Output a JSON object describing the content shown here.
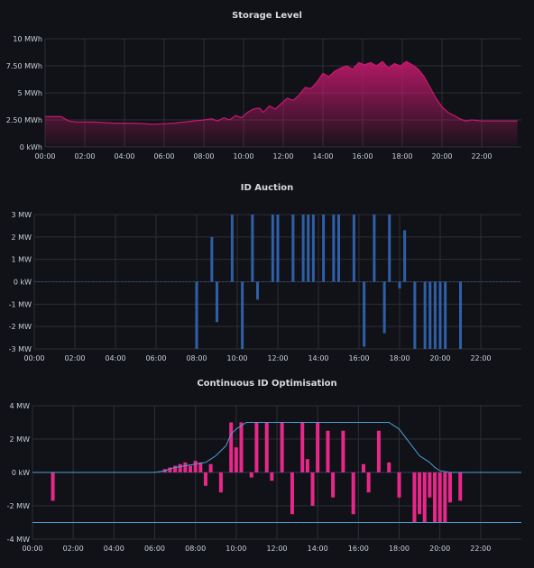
{
  "chart_data": [
    {
      "type": "area",
      "title": "Storage Level",
      "x_tick_labels": [
        "00:00",
        "02:00",
        "04:00",
        "06:00",
        "08:00",
        "10:00",
        "12:00",
        "14:00",
        "16:00",
        "18:00",
        "20:00",
        "22:00"
      ],
      "y_tick_labels": [
        "0 kWh",
        "2.50 MWh",
        "5 MWh",
        "7.50 MWh",
        "10 MWh"
      ],
      "ylim": [
        0,
        10
      ],
      "xlim": [
        0,
        24
      ],
      "grid": true,
      "color": "#c4196e",
      "series": [
        {
          "x": [
            0,
            0.8,
            1.2,
            1.6,
            2.5,
            3.5,
            4.5,
            5.5,
            6.5,
            7.0,
            7.5,
            8.0,
            8.4,
            8.7,
            9.0,
            9.3,
            9.6,
            9.9,
            10.2,
            10.5,
            10.8,
            11.0,
            11.3,
            11.6,
            11.9,
            12.2,
            12.5,
            12.8,
            13.1,
            13.4,
            13.7,
            14.0,
            14.3,
            14.6,
            14.9,
            15.2,
            15.5,
            15.8,
            16.1,
            16.4,
            16.7,
            17.0,
            17.3,
            17.6,
            17.9,
            18.2,
            18.5,
            18.8,
            19.1,
            19.4,
            19.7,
            20.0,
            20.3,
            20.6,
            20.9,
            21.2,
            21.5,
            22.0,
            23.0,
            23.8
          ],
          "y": [
            2.8,
            2.8,
            2.4,
            2.3,
            2.3,
            2.2,
            2.2,
            2.1,
            2.2,
            2.3,
            2.4,
            2.5,
            2.6,
            2.4,
            2.7,
            2.5,
            2.9,
            2.7,
            3.2,
            3.5,
            3.6,
            3.2,
            3.8,
            3.5,
            4.0,
            4.5,
            4.3,
            4.8,
            5.5,
            5.4,
            6.0,
            6.8,
            6.5,
            7.0,
            7.3,
            7.5,
            7.2,
            7.8,
            7.6,
            7.8,
            7.5,
            7.9,
            7.3,
            7.7,
            7.5,
            7.9,
            7.6,
            7.2,
            6.5,
            5.5,
            4.5,
            3.7,
            3.2,
            2.9,
            2.6,
            2.4,
            2.5,
            2.4,
            2.4,
            2.4
          ]
        }
      ]
    },
    {
      "type": "bar",
      "title": "ID Auction",
      "x_tick_labels": [
        "00:00",
        "02:00",
        "04:00",
        "06:00",
        "08:00",
        "10:00",
        "12:00",
        "14:00",
        "16:00",
        "18:00",
        "20:00",
        "22:00"
      ],
      "y_tick_labels": [
        "-3 MW",
        "-2 MW",
        "-1 MW",
        "0 kW",
        "1 MW",
        "2 MW",
        "3 MW"
      ],
      "ylim": [
        -3,
        3
      ],
      "xlim": [
        0,
        24
      ],
      "grid": true,
      "color": "#2f5fa8",
      "series": [
        {
          "x": [
            8.0,
            8.75,
            9.0,
            9.75,
            10.25,
            10.75,
            11.0,
            11.75,
            12.0,
            12.75,
            13.25,
            13.5,
            13.75,
            14.25,
            14.75,
            15.0,
            15.75,
            16.25,
            16.75,
            17.25,
            17.5,
            18.0,
            18.25,
            18.75,
            19.25,
            19.5,
            19.75,
            20.0,
            20.25,
            21.0
          ],
          "y": [
            -3,
            2,
            -1.8,
            3,
            -3,
            3,
            -0.8,
            3,
            3,
            3,
            3,
            3,
            3,
            3,
            3,
            3,
            3,
            -2.9,
            3,
            -2.3,
            3,
            -0.3,
            2.3,
            -3,
            -3,
            -3,
            -3,
            -3,
            -3,
            -3
          ]
        }
      ]
    },
    {
      "type": "bar",
      "title": "Continuous ID Optimisation",
      "x_tick_labels": [
        "00:00",
        "02:00",
        "04:00",
        "06:00",
        "08:00",
        "10:00",
        "12:00",
        "14:00",
        "16:00",
        "18:00",
        "20:00",
        "22:00"
      ],
      "y_tick_labels": [
        "-4 MW",
        "-2 MW",
        "0 kW",
        "2 MW",
        "4 MW"
      ],
      "ylim": [
        -4,
        4
      ],
      "xlim": [
        0,
        24
      ],
      "grid": true,
      "color": "#e8278a",
      "series": [
        {
          "name": "",
          "x": [
            1.0,
            6.5,
            6.75,
            7.0,
            7.25,
            7.5,
            7.75,
            8.0,
            8.25,
            8.5,
            8.75,
            9.25,
            9.75,
            10.0,
            10.25,
            10.75,
            11.0,
            11.5,
            11.75,
            12.25,
            12.75,
            13.25,
            13.5,
            13.75,
            14.0,
            14.5,
            14.75,
            15.25,
            15.75,
            16.25,
            16.5,
            17.0,
            17.5,
            18.0,
            18.75,
            19.0,
            19.25,
            19.5,
            19.75,
            20.0,
            20.25,
            20.5,
            21.0
          ],
          "y": [
            -1.7,
            0.2,
            0.3,
            0.4,
            0.5,
            0.6,
            0.4,
            0.7,
            0.6,
            -0.8,
            0.5,
            -1.2,
            3,
            1.5,
            3,
            -0.3,
            3,
            3,
            -0.5,
            3,
            -2.5,
            3,
            0.8,
            -2,
            3,
            2.5,
            -1.5,
            2.5,
            -2.5,
            0.5,
            -1.2,
            2.5,
            0.6,
            -1.5,
            -3,
            -2.5,
            -3,
            -1.5,
            -3,
            -3,
            -3,
            -1.8,
            -1.7
          ]
        },
        {
          "name": "",
          "type": "line",
          "x": [
            0,
            6.0,
            6.5,
            7.0,
            7.5,
            8.0,
            8.5,
            9.0,
            9.5,
            9.75,
            10.0,
            10.25,
            10.5,
            12.0,
            14.0,
            16.0,
            17.0,
            17.5,
            17.75,
            18.0,
            18.25,
            18.5,
            18.75,
            19.0,
            19.25,
            19.5,
            19.75,
            20.0,
            20.5,
            21.0,
            24.0
          ],
          "y": [
            0,
            0,
            0.1,
            0.3,
            0.4,
            0.5,
            0.6,
            1.0,
            1.6,
            2.3,
            2.6,
            2.8,
            3.0,
            3.0,
            3.0,
            3.0,
            3.0,
            3.0,
            2.8,
            2.6,
            2.2,
            1.8,
            1.4,
            1.0,
            0.8,
            0.6,
            0.3,
            0.1,
            0,
            0,
            0
          ]
        },
        {
          "name": "",
          "type": "line",
          "x": [
            0,
            24
          ],
          "y": [
            -3,
            -3
          ]
        }
      ]
    }
  ]
}
